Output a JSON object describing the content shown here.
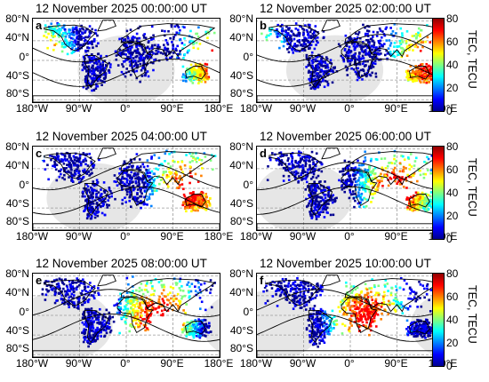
{
  "panels": [
    {
      "letter": "a",
      "title": "12 November 2025 00:00:00 UT",
      "night_center_lon": 0,
      "colorbar": false
    },
    {
      "letter": "b",
      "title": "12 November 2025 02:00:00 UT",
      "night_center_lon": -30,
      "colorbar": true
    },
    {
      "letter": "c",
      "title": "12 November 2025 04:00:00 UT",
      "night_center_lon": -60,
      "colorbar": false
    },
    {
      "letter": "d",
      "title": "12 November 2025 06:00:00 UT",
      "night_center_lon": -90,
      "colorbar": true
    },
    {
      "letter": "e",
      "title": "12 November 2025 08:00:00 UT",
      "night_center_lon": -120,
      "colorbar": false
    },
    {
      "letter": "f",
      "title": "12 November 2025 10:00:00 UT",
      "night_center_lon": -150,
      "colorbar": true
    }
  ],
  "axes": {
    "lat_ticks": [
      "80°N",
      "40°N",
      "0°",
      "40°S",
      "80°S"
    ],
    "lon_ticks": [
      "180°W",
      "90°W",
      "0°",
      "90°E",
      "180°E"
    ]
  },
  "colorbar": {
    "label": "TEC, TECU",
    "ticks": [
      "80",
      "60",
      "40",
      "20",
      "0"
    ],
    "min": 0,
    "max": 80,
    "colors": [
      "#000090",
      "#0000ff",
      "#0080ff",
      "#00ffff",
      "#80ff80",
      "#ffff00",
      "#ff8000",
      "#ff0000",
      "#900000"
    ]
  },
  "map_style": {
    "night_color": "#e6e6e6",
    "grid_color": "#9a9a9a",
    "coast_color": "#000000"
  }
}
